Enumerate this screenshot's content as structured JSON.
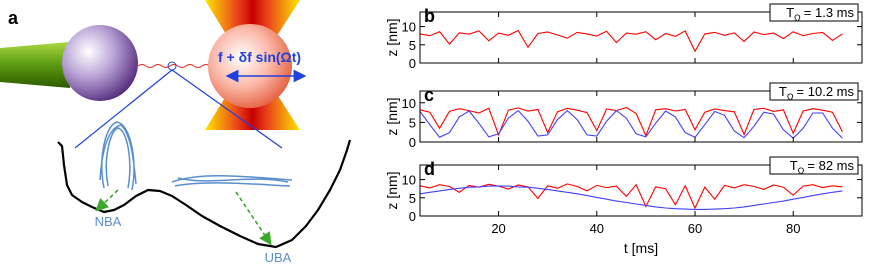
{
  "panel_a": {
    "label": "a",
    "force_label": "f + δf sin(Ωt)",
    "states": [
      "NBA",
      "UBA"
    ]
  },
  "chart_data": [
    {
      "type": "line",
      "panel_label": "b",
      "period": {
        "symbol": "T",
        "subscript": "Ω",
        "text": "= 1.3 ms"
      },
      "ylabel": "z [nm]",
      "xlim": [
        4,
        94
      ],
      "ylim": [
        0,
        14
      ],
      "yticks": [
        0,
        5,
        10
      ],
      "x": [
        4,
        6,
        8,
        10,
        12,
        14,
        16,
        18,
        20,
        22,
        24,
        26,
        28,
        30,
        32,
        34,
        36,
        38,
        40,
        42,
        44,
        46,
        48,
        50,
        52,
        54,
        56,
        58,
        60,
        62,
        64,
        66,
        68,
        70,
        72,
        74,
        76,
        78,
        80,
        82,
        84,
        86,
        88,
        90
      ],
      "series": [
        {
          "color": "#ff0000",
          "values": [
            8,
            7.5,
            8.6,
            5.2,
            8.3,
            7.9,
            8.8,
            6.1,
            8.2,
            7.6,
            8.9,
            4.3,
            8.1,
            8.5,
            7.7,
            6.8,
            8.4,
            8.0,
            7.4,
            8.7,
            5.6,
            8.2,
            7.9,
            8.6,
            6.4,
            8.1,
            7.3,
            8.8,
            3.2,
            8.0,
            8.4,
            7.6,
            8.3,
            5.9,
            8.5,
            7.8,
            8.2,
            6.7,
            8.6,
            7.5,
            8.1,
            8.4,
            6.2,
            8.0
          ]
        }
      ]
    },
    {
      "type": "line",
      "panel_label": "c",
      "period": {
        "symbol": "T",
        "subscript": "Ω",
        "text": "= 10.2 ms"
      },
      "ylabel": "z [nm]",
      "xlim": [
        4,
        94
      ],
      "ylim": [
        0,
        13
      ],
      "yticks": [
        0,
        5,
        10
      ],
      "x": [
        4,
        6,
        8,
        10,
        12,
        14,
        16,
        18,
        20,
        22,
        24,
        26,
        28,
        30,
        32,
        34,
        36,
        38,
        40,
        42,
        44,
        46,
        48,
        50,
        52,
        54,
        56,
        58,
        60,
        62,
        64,
        66,
        68,
        70,
        72,
        74,
        76,
        78,
        80,
        82,
        84,
        86,
        88,
        90
      ],
      "series": [
        {
          "color": "#ff0000",
          "values": [
            8.2,
            7.6,
            3.5,
            7.8,
            8.5,
            8.0,
            7.4,
            8.6,
            1.8,
            8.1,
            8.7,
            7.9,
            8.3,
            2.4,
            7.7,
            8.6,
            8.1,
            7.5,
            2.9,
            8.4,
            8.0,
            8.8,
            7.3,
            1.6,
            8.2,
            8.5,
            7.9,
            8.3,
            3.1,
            7.6,
            8.4,
            8.0,
            7.7,
            1.9,
            8.3,
            8.6,
            7.8,
            8.2,
            2.2,
            7.9,
            8.5,
            8.1,
            7.6,
            2.6
          ]
        },
        {
          "color": "#4040ff",
          "values": [
            7.8,
            4.4,
            1.2,
            2.4,
            6.4,
            7.9,
            4.8,
            1.3,
            2.1,
            6.1,
            8.0,
            5.3,
            1.5,
            1.8,
            5.7,
            8.0,
            5.7,
            1.8,
            1.5,
            5.3,
            8.0,
            6.1,
            2.1,
            1.3,
            4.8,
            7.9,
            6.4,
            2.4,
            1.2,
            4.4,
            7.8,
            6.8,
            2.8,
            1.1,
            4.0,
            7.6,
            7.1,
            3.1,
            1.0,
            3.5,
            7.4,
            7.4,
            3.5,
            1.0
          ]
        }
      ]
    },
    {
      "type": "line",
      "panel_label": "d",
      "period": {
        "symbol": "T",
        "subscript": "Ω",
        "text": "= 82 ms"
      },
      "ylabel": "z [nm]",
      "xlabel": "t [ms]",
      "xlim": [
        4,
        94
      ],
      "ylim": [
        0,
        14
      ],
      "yticks": [
        0,
        5,
        10
      ],
      "xticks": [
        20,
        40,
        60,
        80
      ],
      "x": [
        4,
        6,
        8,
        10,
        12,
        14,
        16,
        18,
        20,
        22,
        24,
        26,
        28,
        30,
        32,
        34,
        36,
        38,
        40,
        42,
        44,
        46,
        48,
        50,
        52,
        54,
        56,
        58,
        60,
        62,
        64,
        66,
        68,
        70,
        72,
        74,
        76,
        78,
        80,
        82,
        84,
        86,
        88,
        90
      ],
      "series": [
        {
          "color": "#ff0000",
          "values": [
            8.3,
            7.7,
            8.6,
            8.1,
            6.5,
            8.4,
            7.9,
            8.7,
            8.2,
            7.4,
            8.5,
            8.0,
            4.8,
            8.3,
            7.6,
            8.8,
            8.1,
            6.9,
            8.4,
            7.8,
            8.2,
            5.4,
            8.6,
            2.6,
            8.0,
            7.5,
            3.1,
            8.3,
            2.2,
            7.9,
            4.6,
            8.4,
            7.7,
            8.6,
            8.1,
            7.3,
            8.5,
            7.9,
            5.7,
            8.2,
            8.6,
            7.8,
            8.3,
            8.0
          ]
        },
        {
          "color": "#4040ff",
          "values": [
            6.1,
            6.5,
            6.9,
            7.3,
            7.6,
            7.9,
            8.0,
            8.2,
            8.2,
            8.2,
            8.0,
            7.9,
            7.6,
            7.3,
            6.9,
            6.5,
            6.1,
            5.6,
            5.1,
            4.6,
            4.1,
            3.7,
            3.3,
            2.9,
            2.5,
            2.2,
            2.0,
            1.9,
            1.8,
            1.8,
            1.9,
            2.0,
            2.2,
            2.5,
            2.9,
            3.3,
            3.7,
            4.1,
            4.6,
            5.1,
            5.6,
            6.1,
            6.5,
            6.9
          ]
        }
      ]
    }
  ]
}
